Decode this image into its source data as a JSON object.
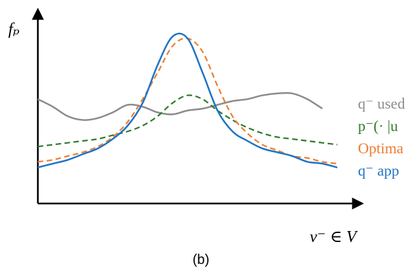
{
  "chart_data": {
    "type": "line",
    "title": "(b)",
    "x_label": "v⁻ ∈ V",
    "y_label": "fₚ",
    "xlim": [
      0,
      10
    ],
    "ylim": [
      0,
      100
    ],
    "x": [
      0,
      0.5,
      1,
      1.5,
      2,
      2.5,
      3,
      3.5,
      4,
      4.5,
      5,
      5.5,
      6,
      6.5,
      7,
      7.5,
      8,
      8.5,
      9,
      9.5,
      10
    ],
    "series": [
      {
        "name": "q⁻ used",
        "color": "#8c8c8c",
        "dash": false,
        "values": [
          55,
          51,
          46,
          44,
          45,
          48,
          52,
          51,
          48,
          47,
          49,
          50,
          52,
          54,
          55,
          57,
          58,
          58,
          55,
          50,
          null
        ]
      },
      {
        "name": "p⁻(· |u",
        "color": "#2e7a2a",
        "dash": true,
        "values": [
          30,
          31,
          32,
          33,
          34,
          36,
          38,
          41,
          46,
          53,
          57,
          55,
          49,
          44,
          40,
          37,
          35,
          34,
          33,
          32,
          31
        ]
      },
      {
        "name": "Optima",
        "color": "#ed7d31",
        "dash": true,
        "values": [
          22,
          23,
          25,
          27,
          30,
          35,
          43,
          55,
          69,
          83,
          87,
          80,
          62,
          46,
          37,
          31,
          28,
          25,
          24,
          22,
          21
        ]
      },
      {
        "name": "q⁻ app",
        "color": "#1f74c4",
        "dash": false,
        "values": [
          19,
          21,
          23,
          26,
          29,
          34,
          41,
          53,
          73,
          88,
          87,
          69,
          49,
          38,
          33,
          29,
          27,
          25,
          22,
          21,
          19
        ]
      }
    ]
  }
}
